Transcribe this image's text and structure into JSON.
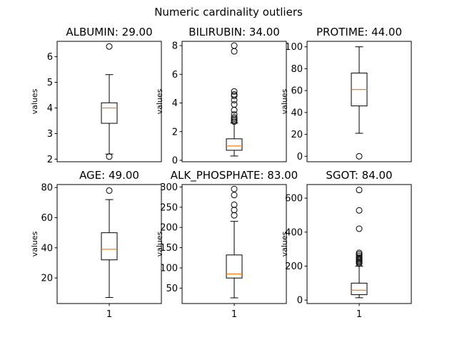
{
  "chart_data": {
    "type": "boxplot",
    "title": "Numeric cardinality outliers",
    "colors": {
      "median": "#ff7f0e",
      "box": "#000000",
      "background": "#ffffff"
    },
    "panels": [
      {
        "title": "ALBUMIN: 29.00",
        "ylabel": "values",
        "xtick": "",
        "ylim": [
          1.9,
          6.6
        ],
        "yticks": [
          2,
          3,
          4,
          5,
          6
        ],
        "box": {
          "whislo": 2.2,
          "q1": 3.4,
          "med": 4.0,
          "q3": 4.2,
          "whishi": 5.3
        },
        "fliers": [
          6.4,
          2.1
        ]
      },
      {
        "title": "BILIRUBIN: 34.00",
        "ylabel": "values",
        "xtick": "",
        "ylim": [
          -0.1,
          8.3
        ],
        "yticks": [
          0,
          2,
          4,
          6,
          8
        ],
        "box": {
          "whislo": 0.3,
          "q1": 0.7,
          "med": 1.0,
          "q3": 1.5,
          "whishi": 2.6
        },
        "fliers": [
          8.0,
          7.6,
          4.8,
          4.6,
          4.5,
          4.2,
          3.9,
          3.5,
          3.2,
          3.0,
          2.9,
          2.8,
          2.7
        ]
      },
      {
        "title": "PROTIME: 44.00",
        "ylabel": "values",
        "xtick": "",
        "ylim": [
          -5,
          105
        ],
        "yticks": [
          0,
          20,
          40,
          60,
          80,
          100
        ],
        "box": {
          "whislo": 21,
          "q1": 46,
          "med": 61,
          "q3": 76,
          "whishi": 100
        },
        "fliers": [
          0
        ]
      },
      {
        "title": "AGE: 49.00",
        "ylabel": "values",
        "xtick": "1",
        "ylim": [
          3,
          82
        ],
        "yticks": [
          20,
          40,
          60,
          80
        ],
        "box": {
          "whislo": 7,
          "q1": 32,
          "med": 39,
          "q3": 50,
          "whishi": 72
        },
        "fliers": [
          78
        ]
      },
      {
        "title": "ALK_PHOSPHATE: 83.00",
        "ylabel": "values",
        "xtick": "1",
        "ylim": [
          12,
          306
        ],
        "yticks": [
          50,
          100,
          150,
          200,
          250,
          300
        ],
        "box": {
          "whislo": 26,
          "q1": 75,
          "med": 85,
          "q3": 132,
          "whishi": 215
        },
        "fliers": [
          295,
          280,
          256,
          243,
          230
        ]
      },
      {
        "title": "SGOT: 84.00",
        "ylabel": "values",
        "xtick": "1",
        "ylim": [
          -20,
          680
        ],
        "yticks": [
          0,
          200,
          400,
          600
        ],
        "box": {
          "whislo": 14,
          "q1": 32,
          "med": 58,
          "q3": 100,
          "whishi": 200
        },
        "fliers": [
          648,
          528,
          420,
          278,
          270,
          260,
          250,
          242,
          235,
          228,
          222,
          215
        ]
      }
    ]
  }
}
